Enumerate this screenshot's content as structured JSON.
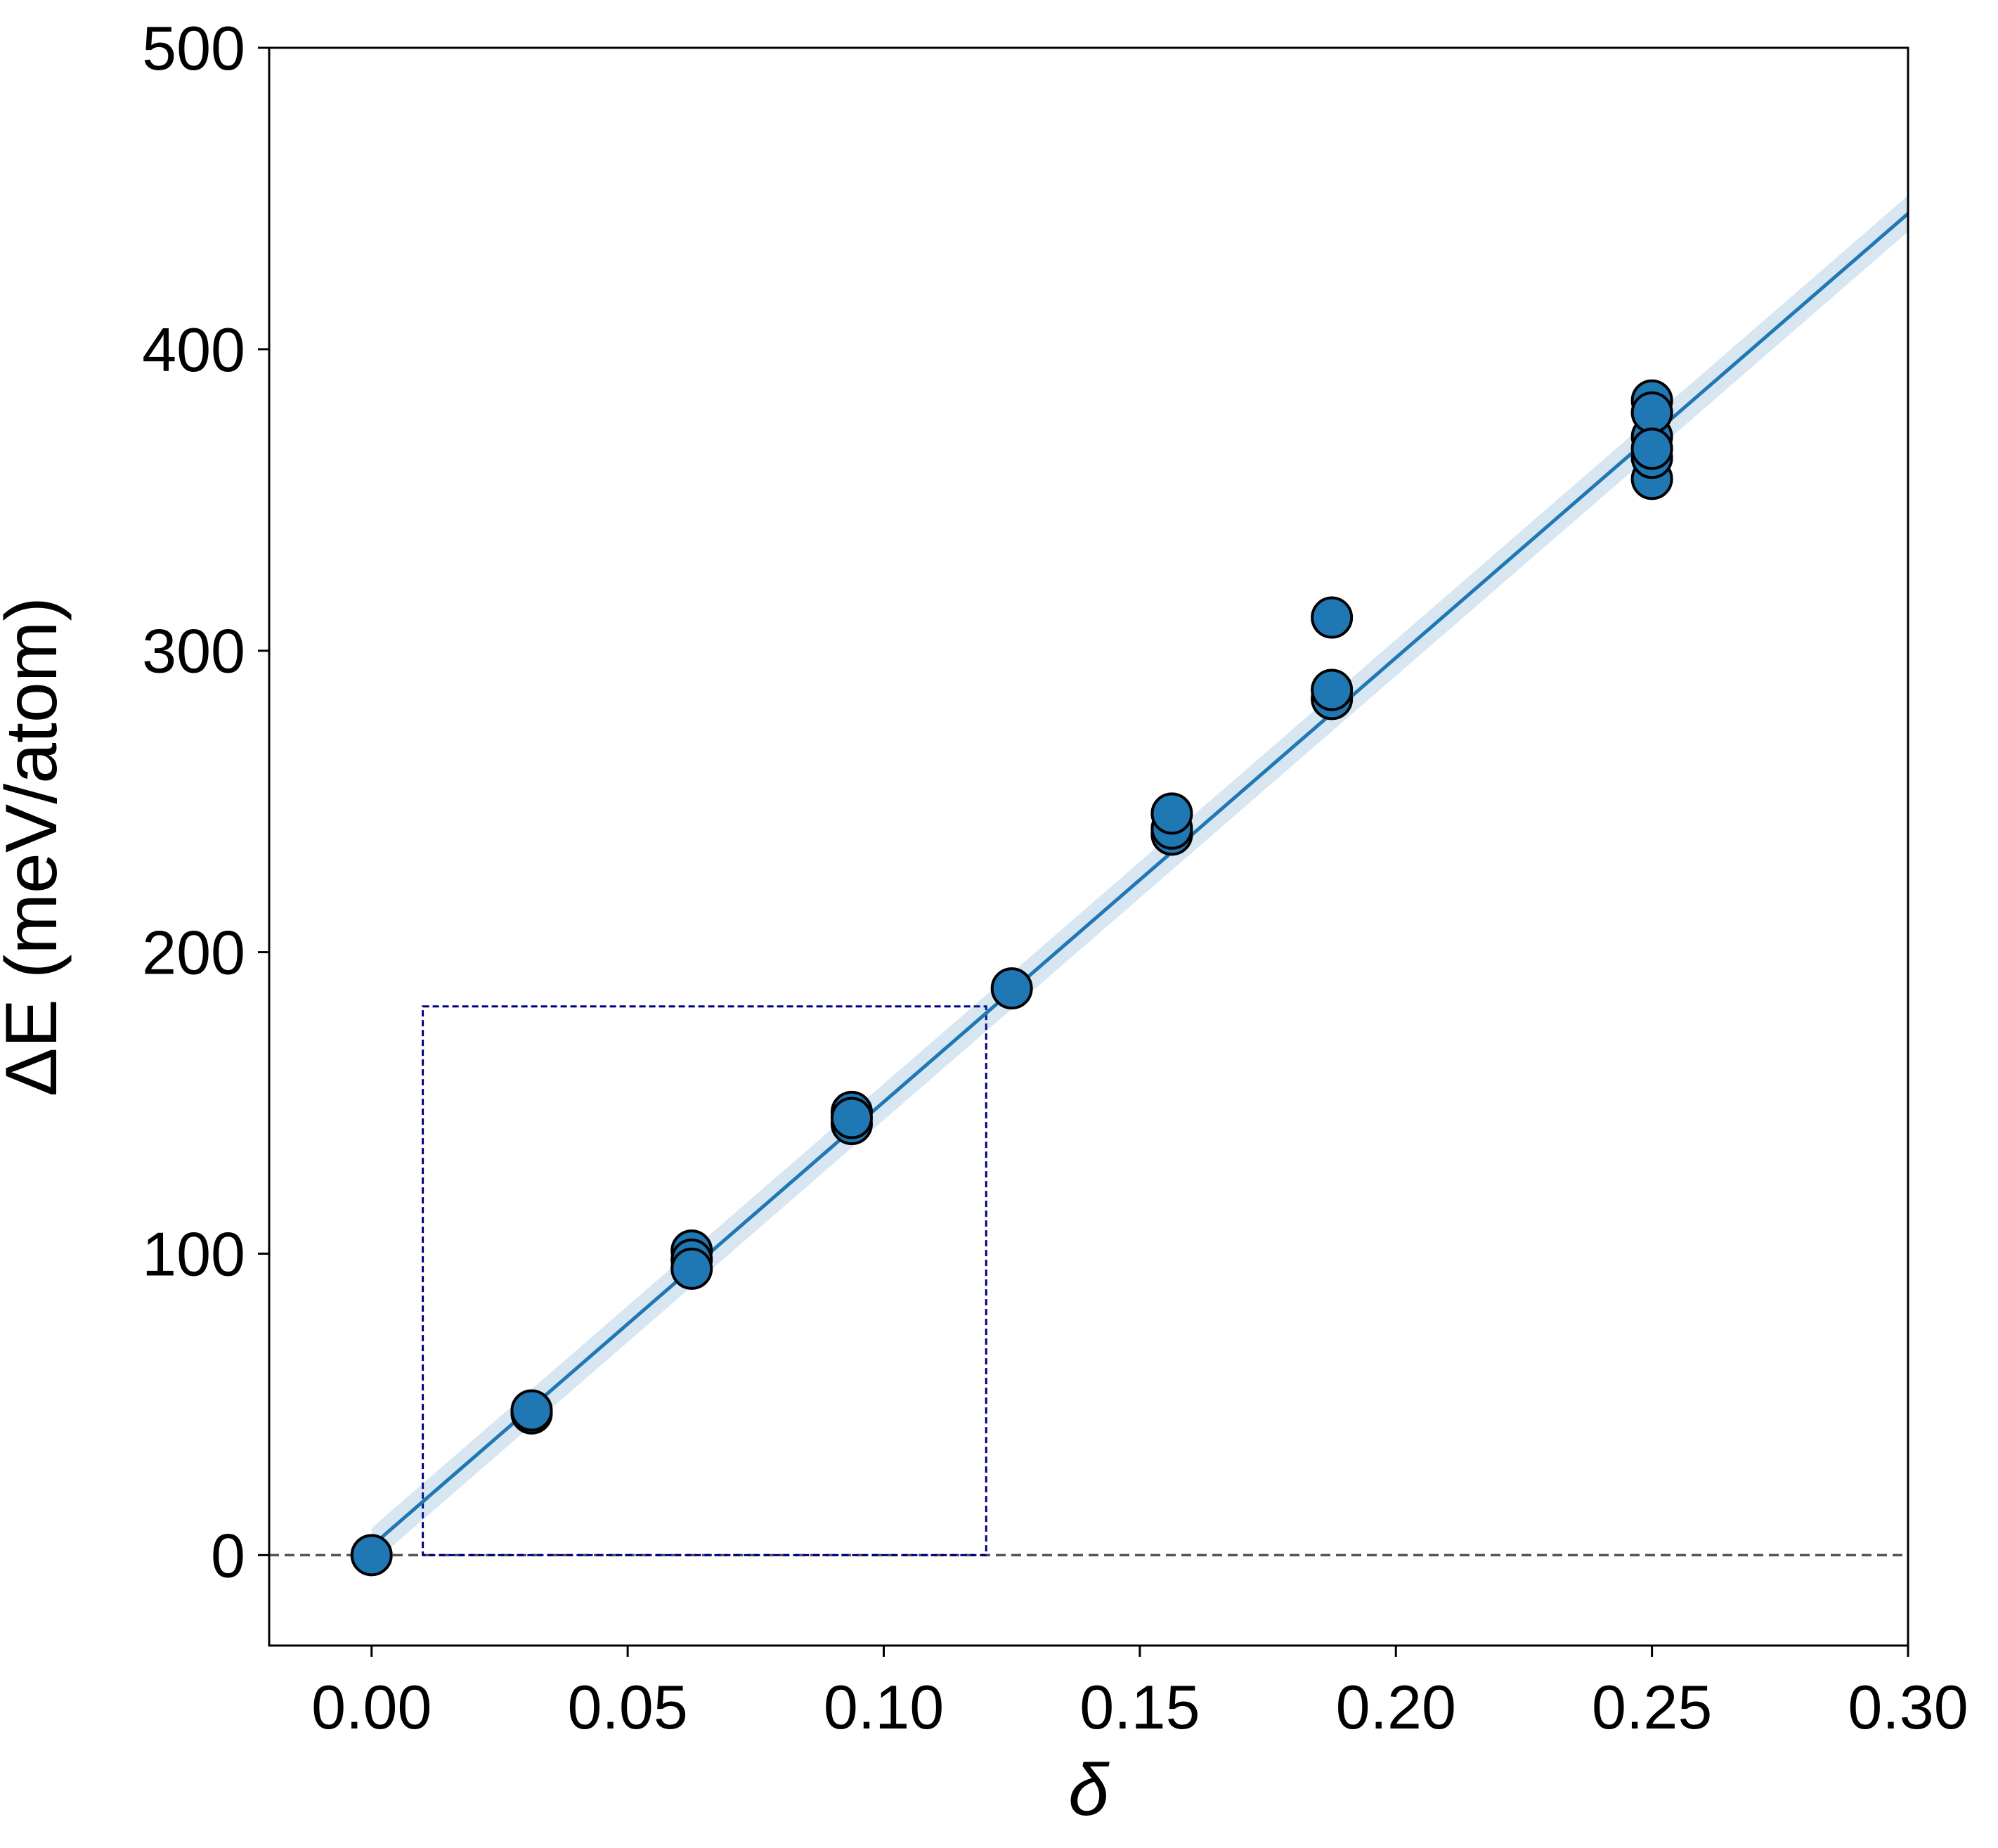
{
  "chart_data": {
    "type": "scatter",
    "title": "",
    "xlabel": "δ",
    "ylabel": "ΔE (meV/atom)",
    "xlim": [
      -0.02,
      0.3
    ],
    "ylim": [
      -30,
      500
    ],
    "x_ticks": [
      "0.00",
      "0.05",
      "0.10",
      "0.15",
      "0.20",
      "0.25",
      "0.30"
    ],
    "y_ticks": [
      "0",
      "100",
      "200",
      "300",
      "400",
      "500"
    ],
    "grid": false,
    "legend": "none",
    "series": [
      {
        "type": "scatter",
        "color": "#1f77b4",
        "x": [
          0.0,
          0.03125,
          0.03125,
          0.0625,
          0.0625,
          0.0625,
          0.09375,
          0.09375,
          0.09375,
          0.125,
          0.15625,
          0.15625,
          0.15625,
          0.1875,
          0.1875,
          0.1875,
          0.25,
          0.25,
          0.25,
          0.25,
          0.25,
          0.25
        ],
        "y": [
          0,
          47,
          48,
          101,
          98,
          95,
          147,
          143,
          145,
          188,
          239,
          241,
          246,
          311,
          284,
          287,
          357,
          364,
          371,
          383,
          379,
          367
        ]
      },
      {
        "type": "line",
        "color": "#1f77b4",
        "x": [
          0.0,
          0.3
        ],
        "y": [
          3,
          445
        ]
      }
    ],
    "annotations": [
      {
        "type": "hline",
        "y": 0,
        "style": "dashed",
        "color": "#555555"
      },
      {
        "type": "rect",
        "x": [
          0.01,
          0.12
        ],
        "y": [
          0,
          182
        ],
        "style": "dashed",
        "color": "#00007f"
      }
    ]
  }
}
